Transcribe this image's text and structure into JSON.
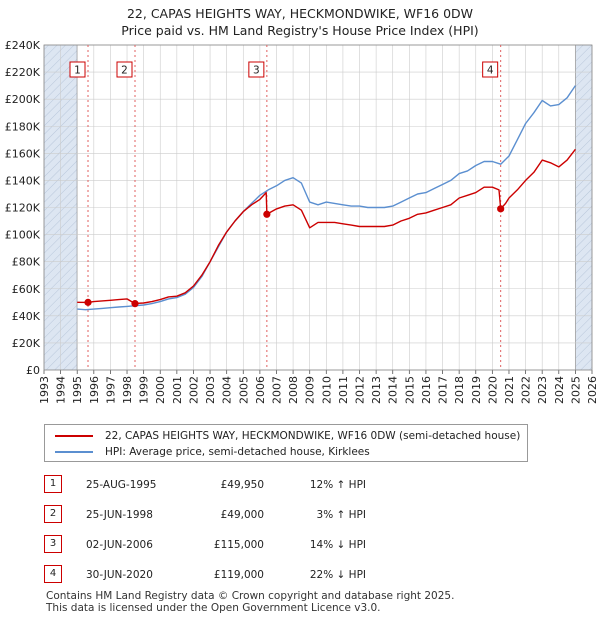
{
  "title_line1": "22, CAPAS HEIGHTS WAY, HECKMONDWIKE, WF16 0DW",
  "title_line2": "Price paid vs. HM Land Registry's House Price Index (HPI)",
  "legend": {
    "series1": "22, CAPAS HEIGHTS WAY, HECKMONDWIKE, WF16 0DW (semi-detached house)",
    "series2": "HPI: Average price, semi-detached house, Kirklees"
  },
  "colors": {
    "price": "#cc0000",
    "hpi": "#5b8fd0",
    "shade": "#dde6f2",
    "grid": "#cccccc",
    "vline": "#e06060"
  },
  "sales": [
    {
      "num": "1",
      "date": "25-AUG-1995",
      "price": "£49,950",
      "hpi": "12% ↑ HPI"
    },
    {
      "num": "2",
      "date": "25-JUN-1998",
      "price": "£49,000",
      "hpi": "3% ↑ HPI"
    },
    {
      "num": "3",
      "date": "02-JUN-2006",
      "price": "£115,000",
      "hpi": "14% ↓ HPI"
    },
    {
      "num": "4",
      "date": "30-JUN-2020",
      "price": "£119,000",
      "hpi": "22% ↓ HPI"
    }
  ],
  "footer": {
    "line1": "Contains HM Land Registry data © Crown copyright and database right 2025.",
    "line2": "This data is licensed under the Open Government Licence v3.0."
  },
  "chart_data": {
    "type": "line",
    "title": "22, CAPAS HEIGHTS WAY, HECKMONDWIKE, WF16 0DW",
    "subtitle": "Price paid vs. HM Land Registry's House Price Index (HPI)",
    "xlim": [
      1993,
      2026
    ],
    "ylim": [
      0,
      240000
    ],
    "x_ticks": [
      "1993",
      "1994",
      "1995",
      "1996",
      "1997",
      "1998",
      "1999",
      "2000",
      "2001",
      "2002",
      "2003",
      "2004",
      "2005",
      "2006",
      "2007",
      "2008",
      "2009",
      "2010",
      "2011",
      "2012",
      "2013",
      "2014",
      "2015",
      "2016",
      "2017",
      "2018",
      "2019",
      "2020",
      "2021",
      "2022",
      "2023",
      "2024",
      "2025",
      "2026"
    ],
    "y_ticks": [
      {
        "value": 0,
        "label": "£0"
      },
      {
        "value": 20000,
        "label": "£20K"
      },
      {
        "value": 40000,
        "label": "£40K"
      },
      {
        "value": 60000,
        "label": "£60K"
      },
      {
        "value": 80000,
        "label": "£80K"
      },
      {
        "value": 100000,
        "label": "£100K"
      },
      {
        "value": 120000,
        "label": "£120K"
      },
      {
        "value": 140000,
        "label": "£140K"
      },
      {
        "value": 160000,
        "label": "£160K"
      },
      {
        "value": 180000,
        "label": "£180K"
      },
      {
        "value": 200000,
        "label": "£200K"
      },
      {
        "value": 220000,
        "label": "£220K"
      },
      {
        "value": 240000,
        "label": "£240K"
      }
    ],
    "shaded_ranges": [
      [
        1993,
        1995.0
      ],
      [
        2025.0,
        2026
      ]
    ],
    "sale_markers": [
      {
        "label": "1",
        "x": 1995.65,
        "y": 49950
      },
      {
        "label": "2",
        "x": 1998.48,
        "y": 49000
      },
      {
        "label": "3",
        "x": 2006.42,
        "y": 115000
      },
      {
        "label": "4",
        "x": 2020.5,
        "y": 119000
      }
    ],
    "series": [
      {
        "name": "22, CAPAS HEIGHTS WAY, HECKMONDWIKE, WF16 0DW (semi-detached house)",
        "x": [
          1995.0,
          1995.65,
          1996.0,
          1996.5,
          1997.0,
          1997.5,
          1998.0,
          1998.48,
          1998.5,
          1999.0,
          1999.5,
          2000.0,
          2000.5,
          2001.0,
          2001.5,
          2002.0,
          2002.5,
          2003.0,
          2003.5,
          2004.0,
          2004.5,
          2005.0,
          2005.5,
          2006.0,
          2006.38,
          2006.42,
          2006.7,
          2007.0,
          2007.5,
          2008.0,
          2008.5,
          2009.0,
          2009.5,
          2010.0,
          2010.5,
          2011.0,
          2011.5,
          2012.0,
          2012.5,
          2013.0,
          2013.5,
          2014.0,
          2014.5,
          2015.0,
          2015.5,
          2016.0,
          2016.5,
          2017.0,
          2017.5,
          2018.0,
          2018.5,
          2019.0,
          2019.5,
          2020.0,
          2020.4,
          2020.5,
          2020.8,
          2021.0,
          2021.5,
          2022.0,
          2022.5,
          2023.0,
          2023.5,
          2024.0,
          2024.5,
          2025.0
        ],
        "y": [
          50000,
          49950,
          50500,
          51000,
          51500,
          52000,
          52500,
          49000,
          49200,
          49500,
          50500,
          52000,
          54000,
          54500,
          57000,
          62000,
          70000,
          80000,
          92000,
          102000,
          110000,
          117000,
          122000,
          126000,
          131000,
          115000,
          117000,
          119000,
          121000,
          122000,
          118000,
          105000,
          109000,
          109000,
          109000,
          108000,
          107000,
          106000,
          106000,
          106000,
          106000,
          107000,
          110000,
          112000,
          115000,
          116000,
          118000,
          120000,
          122000,
          127000,
          129000,
          131000,
          135000,
          135000,
          133000,
          119000,
          123000,
          127000,
          133000,
          140000,
          146000,
          155000,
          153000,
          150000,
          155000,
          163000
        ]
      },
      {
        "name": "HPI: Average price, semi-detached house, Kirklees",
        "x": [
          1995.0,
          1995.5,
          1996.0,
          1996.5,
          1997.0,
          1997.5,
          1998.0,
          1998.5,
          1999.0,
          1999.5,
          2000.0,
          2000.5,
          2001.0,
          2001.5,
          2002.0,
          2002.5,
          2003.0,
          2003.5,
          2004.0,
          2004.5,
          2005.0,
          2005.5,
          2006.0,
          2006.5,
          2007.0,
          2007.5,
          2008.0,
          2008.5,
          2009.0,
          2009.5,
          2010.0,
          2010.5,
          2011.0,
          2011.5,
          2012.0,
          2012.5,
          2013.0,
          2013.5,
          2014.0,
          2014.5,
          2015.0,
          2015.5,
          2016.0,
          2016.5,
          2017.0,
          2017.5,
          2018.0,
          2018.5,
          2019.0,
          2019.5,
          2020.0,
          2020.5,
          2021.0,
          2021.5,
          2022.0,
          2022.5,
          2023.0,
          2023.5,
          2024.0,
          2024.5,
          2025.0
        ],
        "y": [
          45000,
          44500,
          45000,
          45500,
          46000,
          46500,
          47000,
          47500,
          48000,
          49000,
          50500,
          52500,
          53500,
          56000,
          61000,
          69000,
          80000,
          91000,
          102000,
          110000,
          117000,
          123000,
          129000,
          133000,
          136000,
          140000,
          142000,
          138000,
          124000,
          122000,
          124000,
          123000,
          122000,
          121000,
          121000,
          120000,
          120000,
          120000,
          121000,
          124000,
          127000,
          130000,
          131000,
          134000,
          137000,
          140000,
          145000,
          147000,
          151000,
          154000,
          154000,
          152000,
          158000,
          170000,
          182000,
          190000,
          199000,
          195000,
          196000,
          201000,
          210000
        ]
      }
    ]
  }
}
